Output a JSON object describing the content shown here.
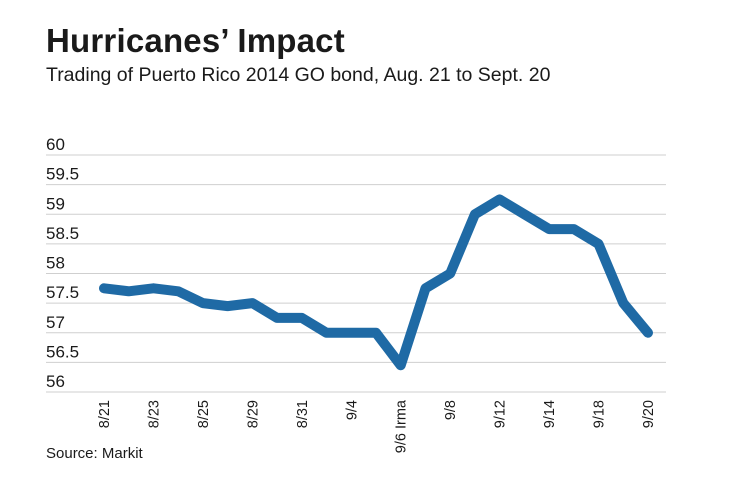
{
  "header": {
    "title": "Hurricanes’ Impact",
    "subtitle": "Trading of Puerto Rico 2014 GO bond, Aug. 21 to Sept. 20"
  },
  "footer": {
    "source": "Source: Markit"
  },
  "colors": {
    "line": "#1f6aa5",
    "grid": "#cfcfcf",
    "text": "#1a1a1a"
  },
  "chart_data": {
    "type": "line",
    "title": "Hurricanes’ Impact",
    "subtitle": "Trading of Puerto Rico 2014 GO bond, Aug. 21 to Sept. 20",
    "ylim": [
      56,
      60
    ],
    "yticks": [
      60,
      59.5,
      59,
      58.5,
      58,
      57.5,
      57,
      56.5,
      56
    ],
    "xticks": [
      {
        "index": 0,
        "label": "8/21"
      },
      {
        "index": 2,
        "label": "8/23"
      },
      {
        "index": 4,
        "label": "8/25"
      },
      {
        "index": 6,
        "label": "8/29"
      },
      {
        "index": 8,
        "label": "8/31"
      },
      {
        "index": 10,
        "label": "9/4"
      },
      {
        "index": 12,
        "label": "9/6 Irma"
      },
      {
        "index": 14,
        "label": "9/8"
      },
      {
        "index": 16,
        "label": "9/12"
      },
      {
        "index": 18,
        "label": "9/14"
      },
      {
        "index": 20,
        "label": "9/18"
      },
      {
        "index": 22,
        "label": "9/20"
      }
    ],
    "grid": true,
    "series": [
      {
        "values": [
          57.75,
          57.7,
          57.75,
          57.7,
          57.5,
          57.45,
          57.5,
          57.25,
          57.25,
          57.0,
          57.0,
          57.0,
          56.45,
          57.75,
          58.0,
          59.0,
          59.25,
          59.0,
          58.75,
          58.75,
          58.5,
          57.5,
          57.0
        ]
      }
    ]
  }
}
